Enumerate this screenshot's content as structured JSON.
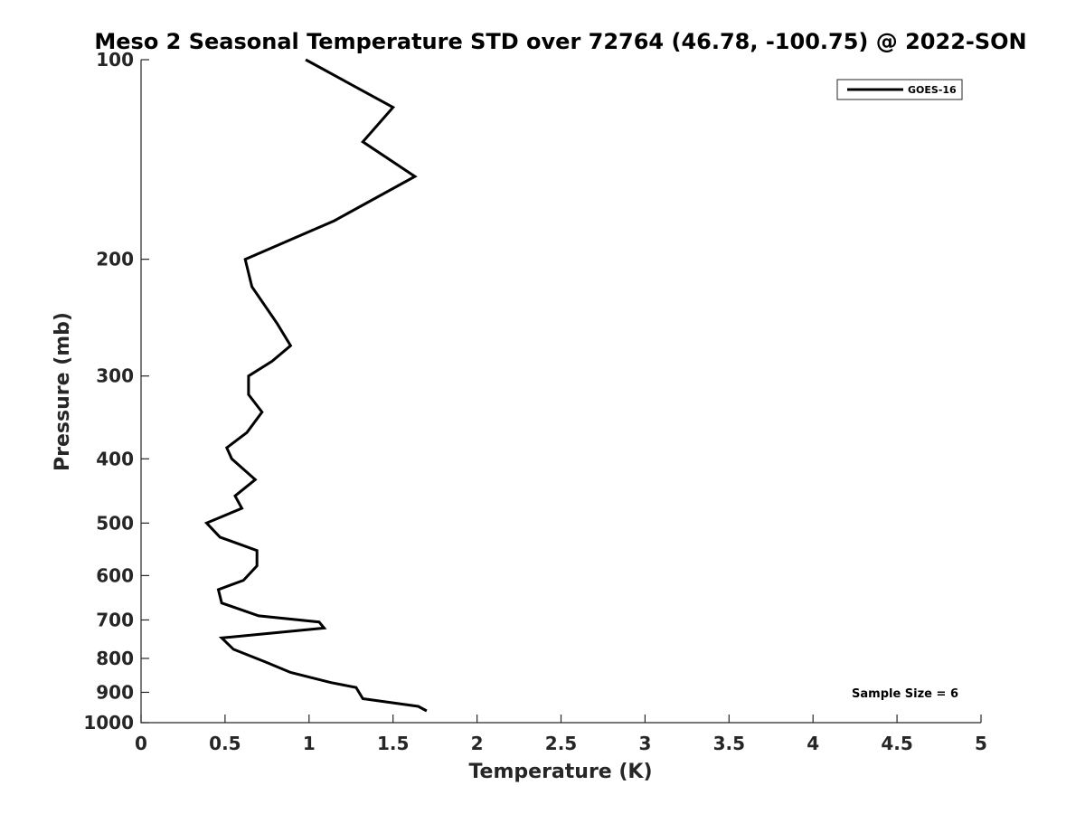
{
  "chart_data": {
    "type": "line",
    "title": "Meso 2 Seasonal Temperature STD over 72764 (46.78, -100.75) @ 2022-SON",
    "xlabel": "Temperature (K)",
    "ylabel": "Pressure (mb)",
    "xlim": [
      0,
      5
    ],
    "ylim": [
      1000,
      100
    ],
    "yscale": "log",
    "x_ticks": [
      "0",
      "0.5",
      "1",
      "1.5",
      "2",
      "2.5",
      "3",
      "3.5",
      "4",
      "4.5",
      "5"
    ],
    "y_ticks": [
      "100",
      "200",
      "300",
      "400",
      "500",
      "600",
      "700",
      "800",
      "900",
      "1000"
    ],
    "legend": {
      "entries": [
        "GOES-16"
      ],
      "position": "top-right"
    },
    "annotation": "Sample Size = 6",
    "series": [
      {
        "name": "GOES-16",
        "color": "#000000",
        "pressure": [
          100,
          118,
          133,
          150,
          175,
          200,
          220,
          250,
          270,
          285,
          300,
          320,
          340,
          365,
          385,
          400,
          430,
          455,
          475,
          500,
          525,
          550,
          580,
          610,
          630,
          660,
          690,
          705,
          720,
          745,
          775,
          810,
          840,
          870,
          885,
          920,
          945,
          960
        ],
        "temperature": [
          0.98,
          1.5,
          1.32,
          1.63,
          1.15,
          0.62,
          0.66,
          0.81,
          0.89,
          0.78,
          0.64,
          0.64,
          0.72,
          0.63,
          0.51,
          0.54,
          0.68,
          0.56,
          0.6,
          0.39,
          0.47,
          0.69,
          0.69,
          0.61,
          0.46,
          0.48,
          0.7,
          1.06,
          1.09,
          0.48,
          0.55,
          0.74,
          0.89,
          1.13,
          1.28,
          1.32,
          1.65,
          1.7
        ]
      }
    ]
  }
}
